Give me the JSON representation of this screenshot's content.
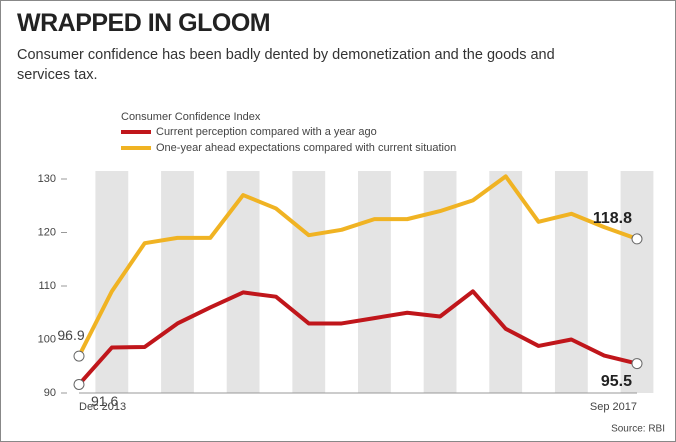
{
  "chart_data": {
    "type": "line",
    "title": "WRAPPED IN GLOOM",
    "subtitle": "Consumer confidence has been badly dented by demonetization and the goods and services tax.",
    "legend_title": "Consumer Confidence Index",
    "source": "Source: RBI",
    "categories": [
      "Dec 2013",
      null,
      null,
      null,
      null,
      null,
      null,
      null,
      null,
      null,
      null,
      null,
      null,
      null,
      null,
      null,
      null,
      "Sep 2017"
    ],
    "series": [
      {
        "name": "Current perception compared with a year ago",
        "color": "#c0161b",
        "values": [
          91.6,
          98.5,
          98.6,
          103,
          106,
          108.8,
          108,
          103,
          103,
          104,
          105,
          104.3,
          109,
          102,
          98.8,
          100,
          97,
          95.5
        ]
      },
      {
        "name": "One-year ahead expectations compared with current situation",
        "color": "#f0b323",
        "values": [
          96.9,
          109,
          118,
          119,
          119,
          127,
          124.5,
          119.5,
          120.5,
          122.5,
          122.5,
          124,
          126,
          130.5,
          122,
          123.5,
          121,
          118.8
        ]
      }
    ],
    "ylim": [
      90,
      130
    ],
    "yticks": [
      90,
      100,
      110,
      120,
      130
    ],
    "grid": false
  }
}
